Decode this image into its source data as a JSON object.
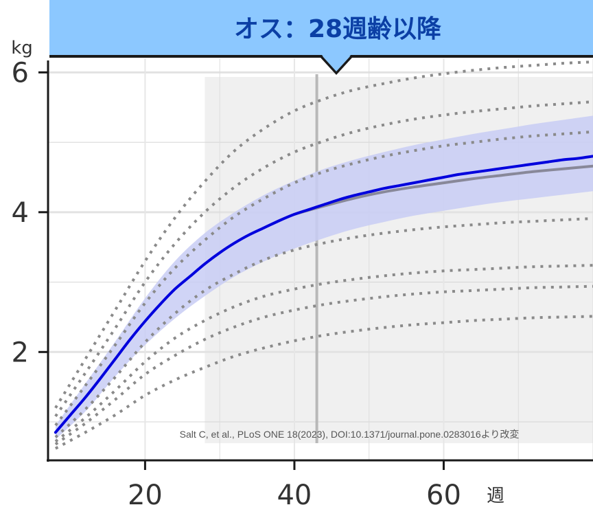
{
  "banner": {
    "title": "オス：28週齢以降",
    "color": "#8cc8ff",
    "text_color": "#0b3fa5"
  },
  "credit": "Salt C, et al., PLoS ONE 18(2023), DOI:10.1371/journal.pone.0283016より改変",
  "chart_data": {
    "type": "line",
    "title": "オス：28週齢以降",
    "ylabel": "kg",
    "xlabel": "週",
    "xlim": [
      7,
      80
    ],
    "ylim": [
      0.45,
      6.2
    ],
    "x_ticks": [
      20,
      40,
      60
    ],
    "x_tick_labels": [
      "20",
      "40",
      "60"
    ],
    "y_ticks": [
      2,
      4,
      6
    ],
    "y_tick_labels": [
      "2",
      "4",
      "6"
    ],
    "highlight_from_week": 28,
    "marker_week": 43,
    "grid": true,
    "series": [
      {
        "role": "main",
        "color": "#0000dd",
        "x": [
          8,
          10,
          12,
          14,
          16,
          18,
          20,
          22,
          24,
          26,
          28,
          30,
          32,
          34,
          36,
          38,
          40,
          42,
          44,
          46,
          48,
          50,
          52,
          54,
          56,
          58,
          60,
          62,
          64,
          66,
          68,
          70,
          72,
          74,
          76,
          78,
          80
        ],
        "y": [
          0.85,
          1.1,
          1.35,
          1.62,
          1.9,
          2.18,
          2.44,
          2.68,
          2.9,
          3.08,
          3.26,
          3.42,
          3.56,
          3.68,
          3.78,
          3.88,
          3.97,
          4.04,
          4.11,
          4.18,
          4.24,
          4.29,
          4.34,
          4.38,
          4.42,
          4.46,
          4.5,
          4.54,
          4.57,
          4.6,
          4.63,
          4.66,
          4.69,
          4.72,
          4.75,
          4.77,
          4.8
        ]
      },
      {
        "role": "reference",
        "color": "#888899",
        "x": [
          40,
          44,
          48,
          52,
          56,
          60,
          64,
          68,
          72,
          76,
          80
        ],
        "y": [
          3.97,
          4.09,
          4.2,
          4.29,
          4.36,
          4.42,
          4.48,
          4.53,
          4.58,
          4.62,
          4.66
        ]
      }
    ],
    "band": {
      "color": "#c8cdf5",
      "x": [
        8,
        12,
        16,
        20,
        24,
        28,
        32,
        36,
        40,
        44,
        48,
        52,
        56,
        60,
        64,
        68,
        72,
        76,
        80
      ],
      "lower": [
        0.75,
        1.15,
        1.65,
        2.1,
        2.48,
        2.8,
        3.08,
        3.3,
        3.48,
        3.63,
        3.76,
        3.86,
        3.95,
        4.02,
        4.09,
        4.15,
        4.2,
        4.25,
        4.3
      ],
      "upper": [
        0.95,
        1.55,
        2.15,
        2.77,
        3.3,
        3.7,
        4.0,
        4.25,
        4.45,
        4.62,
        4.75,
        4.86,
        4.96,
        5.04,
        5.12,
        5.19,
        5.26,
        5.32,
        5.38
      ]
    },
    "percentile_lines": {
      "color": "#8a8a8a",
      "x": [
        8,
        12,
        16,
        20,
        24,
        28,
        32,
        36,
        40,
        44,
        48,
        52,
        56,
        60,
        64,
        68,
        72,
        76,
        80
      ],
      "lines": [
        [
          0.62,
          0.85,
          1.1,
          1.38,
          1.6,
          1.78,
          1.94,
          2.06,
          2.16,
          2.24,
          2.3,
          2.35,
          2.39,
          2.42,
          2.45,
          2.47,
          2.49,
          2.5,
          2.51
        ],
        [
          0.68,
          0.98,
          1.32,
          1.68,
          1.95,
          2.18,
          2.36,
          2.5,
          2.6,
          2.68,
          2.74,
          2.79,
          2.83,
          2.86,
          2.88,
          2.9,
          2.92,
          2.93,
          2.94
        ],
        [
          0.72,
          1.06,
          1.45,
          1.86,
          2.2,
          2.45,
          2.65,
          2.8,
          2.9,
          2.98,
          3.04,
          3.09,
          3.13,
          3.16,
          3.18,
          3.2,
          3.22,
          3.23,
          3.24
        ],
        [
          0.78,
          1.18,
          1.64,
          2.14,
          2.55,
          2.88,
          3.12,
          3.32,
          3.46,
          3.56,
          3.64,
          3.7,
          3.75,
          3.79,
          3.82,
          3.85,
          3.87,
          3.89,
          3.91
        ],
        [
          0.95,
          1.52,
          2.1,
          2.7,
          3.2,
          3.6,
          3.94,
          4.2,
          4.42,
          4.58,
          4.7,
          4.8,
          4.88,
          4.95,
          5.0,
          5.05,
          5.09,
          5.12,
          5.15
        ],
        [
          1.08,
          1.7,
          2.34,
          3.0,
          3.55,
          4.0,
          4.36,
          4.64,
          4.86,
          5.02,
          5.15,
          5.25,
          5.33,
          5.39,
          5.44,
          5.48,
          5.52,
          5.55,
          5.58
        ],
        [
          1.2,
          1.9,
          2.6,
          3.3,
          3.92,
          4.44,
          4.88,
          5.2,
          5.45,
          5.62,
          5.75,
          5.84,
          5.92,
          5.98,
          6.03,
          6.07,
          6.1,
          6.13,
          6.15
        ]
      ]
    }
  }
}
